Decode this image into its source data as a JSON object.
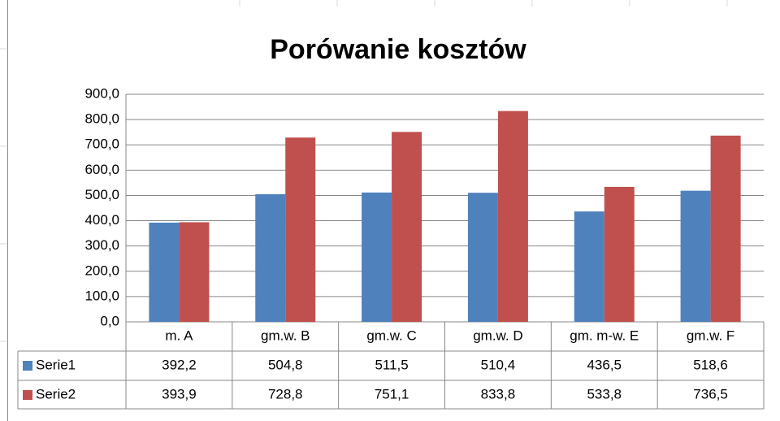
{
  "chart_data": {
    "type": "bar",
    "title": "Porówanie kosztów",
    "categories": [
      "m. A",
      "gm.w. B",
      "gm.w. C",
      "gm.w. D",
      "gm. m-w. E",
      "gm.w. F"
    ],
    "series": [
      {
        "name": "Serie1",
        "color": "#4f81bd",
        "values": [
          392.2,
          504.8,
          511.5,
          510.4,
          436.5,
          518.6
        ],
        "value_labels": [
          "392,2",
          "504,8",
          "511,5",
          "510,4",
          "436,5",
          "518,6"
        ]
      },
      {
        "name": "Serie2",
        "color": "#c0504d",
        "values": [
          393.9,
          728.8,
          751.1,
          833.8,
          533.8,
          736.5
        ],
        "value_labels": [
          "393,9",
          "728,8",
          "751,1",
          "833,8",
          "533,8",
          "736,5"
        ]
      }
    ],
    "ylim": [
      0,
      900
    ],
    "yticks": [
      {
        "value": 0,
        "label": "0,0"
      },
      {
        "value": 100,
        "label": "100,0"
      },
      {
        "value": 200,
        "label": "200,0"
      },
      {
        "value": 300,
        "label": "300,0"
      },
      {
        "value": 400,
        "label": "400,0"
      },
      {
        "value": 500,
        "label": "500,0"
      },
      {
        "value": 600,
        "label": "600,0"
      },
      {
        "value": 700,
        "label": "700,0"
      },
      {
        "value": 800,
        "label": "800,0"
      },
      {
        "value": 900,
        "label": "900,0"
      }
    ],
    "grid": true
  }
}
